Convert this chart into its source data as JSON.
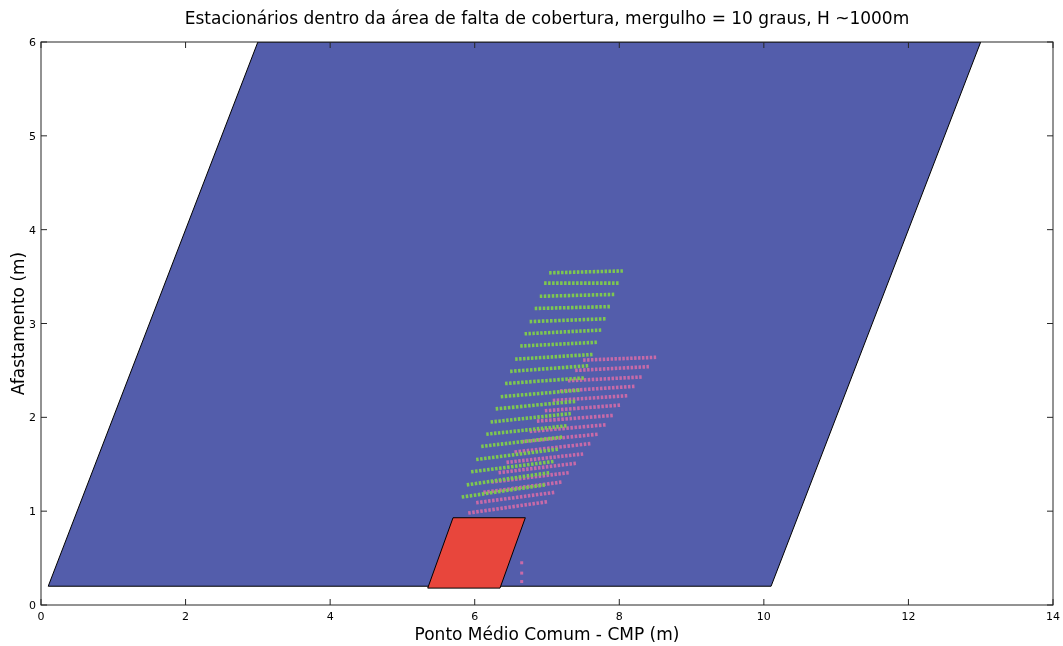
{
  "chart_data": {
    "type": "line",
    "title": "Estacionários dentro da área de falta de cobertura, mergulho = 10 graus, H ~1000m",
    "xlabel": "Ponto Médio Comum - CMP (m)",
    "ylabel": "Afastamento (m)",
    "xlim": [
      0,
      14
    ],
    "ylim": [
      0,
      6
    ],
    "xticks": [
      0,
      2,
      4,
      6,
      8,
      10,
      12,
      14
    ],
    "yticks": [
      0,
      1,
      2,
      3,
      4,
      5,
      6
    ],
    "grid": false,
    "legend": false,
    "marker": "none",
    "line_style": "dotted",
    "series": [
      {
        "type": "area",
        "color": "#535dab",
        "x": [
          0.1,
          10.1,
          13,
          3,
          0.1
        ],
        "values": [
          0.2,
          0.2,
          6,
          6,
          0.2
        ]
      },
      {
        "type": "area",
        "color": "#e8463c",
        "x": [
          5.35,
          6.35,
          6.7,
          5.7,
          5.35
        ],
        "values": [
          0.18,
          0.18,
          0.93,
          0.93,
          0.18
        ]
      },
      {
        "color": "#c76aa8",
        "x": [
          5.91,
          7.0
        ],
        "values": [
          0.98,
          1.1
        ]
      },
      {
        "color": "#c76aa8",
        "x": [
          6.02,
          7.1
        ],
        "values": [
          1.09,
          1.2
        ]
      },
      {
        "color": "#c76aa8",
        "x": [
          6.12,
          7.2
        ],
        "values": [
          1.2,
          1.31
        ]
      },
      {
        "color": "#c76aa8",
        "x": [
          6.23,
          7.3
        ],
        "values": [
          1.31,
          1.41
        ]
      },
      {
        "color": "#c76aa8",
        "x": [
          6.33,
          7.4
        ],
        "values": [
          1.41,
          1.51
        ]
      },
      {
        "color": "#c76aa8",
        "x": [
          6.44,
          7.5
        ],
        "values": [
          1.52,
          1.61
        ]
      },
      {
        "color": "#c76aa8",
        "x": [
          6.55,
          7.6
        ],
        "values": [
          1.63,
          1.72
        ]
      },
      {
        "color": "#c76aa8",
        "x": [
          6.65,
          7.7
        ],
        "values": [
          1.74,
          1.82
        ]
      },
      {
        "color": "#c76aa8",
        "x": [
          6.76,
          7.81
        ],
        "values": [
          1.85,
          1.92
        ]
      },
      {
        "color": "#c76aa8",
        "x": [
          6.86,
          7.91
        ],
        "values": [
          1.96,
          2.02
        ]
      },
      {
        "color": "#c76aa8",
        "x": [
          6.97,
          8.01
        ],
        "values": [
          2.07,
          2.13
        ]
      },
      {
        "color": "#c76aa8",
        "x": [
          7.08,
          8.11
        ],
        "values": [
          2.18,
          2.23
        ]
      },
      {
        "color": "#c76aa8",
        "x": [
          7.18,
          8.21
        ],
        "values": [
          2.28,
          2.33
        ]
      },
      {
        "color": "#c76aa8",
        "x": [
          7.29,
          8.31
        ],
        "values": [
          2.39,
          2.43
        ]
      },
      {
        "color": "#c76aa8",
        "x": [
          7.39,
          8.41
        ],
        "values": [
          2.5,
          2.54
        ]
      },
      {
        "color": "#c76aa8",
        "x": [
          7.5,
          8.51
        ],
        "values": [
          2.61,
          2.64
        ]
      },
      {
        "type": "scatter",
        "marker": "square",
        "color": "#c76aa8",
        "x": [
          6.65,
          6.65,
          6.65
        ],
        "values": [
          0.25,
          0.34,
          0.45
        ]
      },
      {
        "color": "#7ec850",
        "x": [
          5.82,
          6.97
        ],
        "values": [
          1.15,
          1.28
        ]
      },
      {
        "color": "#7ec850",
        "x": [
          5.89,
          7.03
        ],
        "values": [
          1.28,
          1.41
        ]
      },
      {
        "color": "#7ec850",
        "x": [
          5.95,
          7.09
        ],
        "values": [
          1.42,
          1.53
        ]
      },
      {
        "color": "#7ec850",
        "x": [
          6.02,
          7.15
        ],
        "values": [
          1.55,
          1.66
        ]
      },
      {
        "color": "#7ec850",
        "x": [
          6.09,
          7.21
        ],
        "values": [
          1.69,
          1.79
        ]
      },
      {
        "color": "#7ec850",
        "x": [
          6.16,
          7.27
        ],
        "values": [
          1.82,
          1.91
        ]
      },
      {
        "color": "#7ec850",
        "x": [
          6.22,
          7.33
        ],
        "values": [
          1.95,
          2.04
        ]
      },
      {
        "color": "#7ec850",
        "x": [
          6.29,
          7.39
        ],
        "values": [
          2.09,
          2.17
        ]
      },
      {
        "color": "#7ec850",
        "x": [
          6.36,
          7.45
        ],
        "values": [
          2.22,
          2.29
        ]
      },
      {
        "color": "#7ec850",
        "x": [
          6.42,
          7.51
        ],
        "values": [
          2.36,
          2.42
        ]
      },
      {
        "color": "#7ec850",
        "x": [
          6.49,
          7.57
        ],
        "values": [
          2.49,
          2.55
        ]
      },
      {
        "color": "#7ec850",
        "x": [
          6.56,
          7.63
        ],
        "values": [
          2.62,
          2.67
        ]
      },
      {
        "color": "#7ec850",
        "x": [
          6.63,
          7.69
        ],
        "values": [
          2.76,
          2.8
        ]
      },
      {
        "color": "#7ec850",
        "x": [
          6.69,
          7.75
        ],
        "values": [
          2.89,
          2.93
        ]
      },
      {
        "color": "#7ec850",
        "x": [
          6.76,
          7.81
        ],
        "values": [
          3.02,
          3.05
        ]
      },
      {
        "color": "#7ec850",
        "x": [
          6.83,
          7.87
        ],
        "values": [
          3.16,
          3.18
        ]
      },
      {
        "color": "#7ec850",
        "x": [
          6.9,
          7.93
        ],
        "values": [
          3.29,
          3.31
        ]
      },
      {
        "color": "#7ec850",
        "x": [
          6.96,
          7.99
        ],
        "values": [
          3.43,
          3.43
        ]
      },
      {
        "color": "#7ec850",
        "x": [
          7.03,
          8.05
        ],
        "values": [
          3.54,
          3.56
        ]
      }
    ]
  }
}
